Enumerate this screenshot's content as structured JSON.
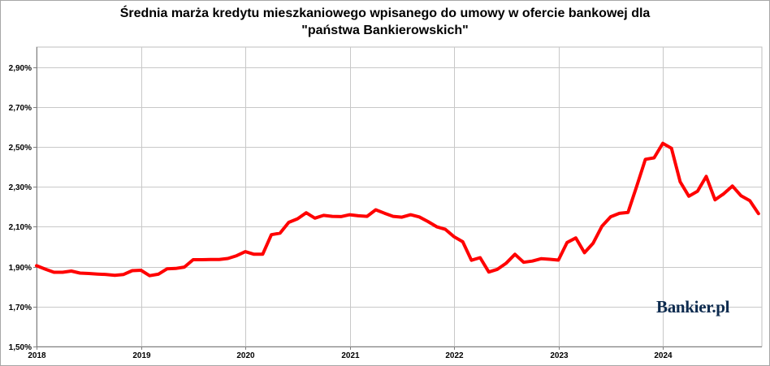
{
  "chart_data": {
    "type": "line",
    "title_line1": "Średnia marża kredytu mieszkaniowego wpisanego do umowy w ofercie bankowej dla",
    "title_line2": "\"państwa Bankierowskich\"",
    "xlabel": "",
    "ylabel": "",
    "ylim": [
      1.5,
      3.0
    ],
    "yticks": [
      1.5,
      1.7,
      1.9,
      2.1,
      2.3,
      2.5,
      2.7,
      2.9
    ],
    "ytick_labels": [
      "1,50%",
      "1,70%",
      "1,90%",
      "2,10%",
      "2,30%",
      "2,50%",
      "2,70%",
      "2,90%"
    ],
    "xticks": [
      2018,
      2019,
      2020,
      2021,
      2022,
      2023,
      2024
    ],
    "xtick_labels": [
      "2018",
      "2019",
      "2020",
      "2021",
      "2022",
      "2023",
      "2024"
    ],
    "grid": true,
    "series": [
      {
        "color": "#ff0000",
        "start_year": 2018,
        "step_months": 1,
        "values": [
          1.905,
          1.888,
          1.872,
          1.872,
          1.878,
          1.868,
          1.866,
          1.863,
          1.861,
          1.857,
          1.861,
          1.88,
          1.882,
          1.855,
          1.862,
          1.889,
          1.891,
          1.898,
          1.935,
          1.935,
          1.936,
          1.936,
          1.941,
          1.955,
          1.975,
          1.962,
          1.962,
          2.06,
          2.068,
          2.122,
          2.14,
          2.17,
          2.143,
          2.157,
          2.152,
          2.151,
          2.16,
          2.155,
          2.152,
          2.185,
          2.168,
          2.152,
          2.148,
          2.16,
          2.149,
          2.126,
          2.1,
          2.087,
          2.05,
          2.025,
          1.932,
          1.945,
          1.873,
          1.887,
          1.918,
          1.962,
          1.922,
          1.928,
          1.94,
          1.937,
          1.933,
          2.021,
          2.044,
          1.97,
          2.018,
          2.102,
          2.15,
          2.167,
          2.172,
          2.303,
          2.438,
          2.445,
          2.518,
          2.493,
          2.325,
          2.253,
          2.278,
          2.352,
          2.235,
          2.265,
          2.304,
          2.255,
          2.231,
          2.166
        ]
      }
    ]
  },
  "brand": {
    "name": "Bankier",
    "suffix": ".pl"
  }
}
